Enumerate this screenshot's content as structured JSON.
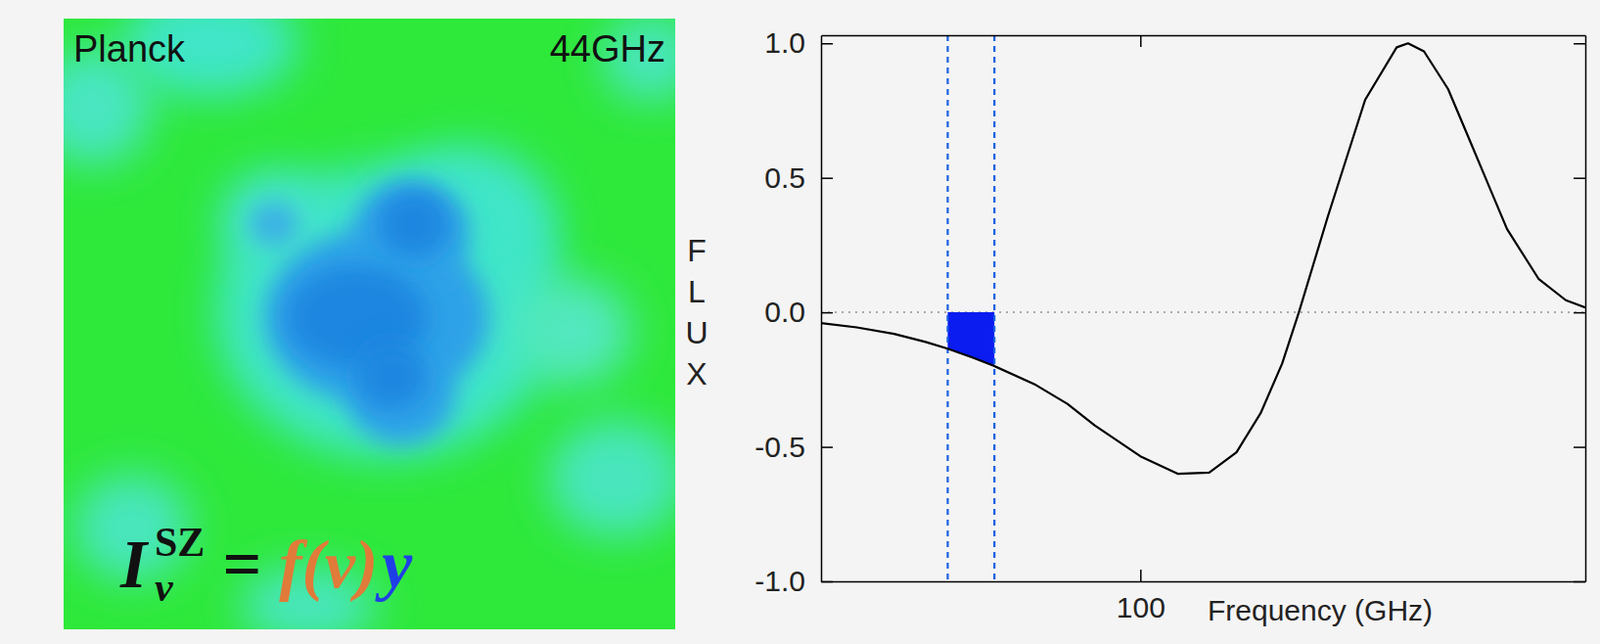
{
  "map_panel": {
    "title": "Planck",
    "frequency_label": "44GHz",
    "formula": {
      "symbol": "I",
      "superscript": "SZ",
      "subscript": "ν",
      "equals": "=",
      "spectrum": "f(ν)",
      "amplitude": "y"
    }
  },
  "chart_data": {
    "type": "line",
    "y_label": "FLUX",
    "x_label": "Frequency (GHz)",
    "log": "x",
    "xlim": [
      21,
      880
    ],
    "ylim": [
      -1.0,
      1.03
    ],
    "xticks": [
      100
    ],
    "yticks": [
      {
        "value": 1.0,
        "label": "1.0"
      },
      {
        "value": 0.5,
        "label": "0.5"
      },
      {
        "value": 0.0,
        "label": "0.0"
      },
      {
        "value": -0.5,
        "label": "-0.5"
      },
      {
        "value": -1.0,
        "label": "-1.0"
      }
    ],
    "grid": false,
    "x": [
      21,
      25,
      30,
      35,
      39,
      44,
      49,
      60,
      70,
      80,
      100,
      120,
      140,
      160,
      180,
      200,
      217,
      250,
      300,
      350,
      370,
      400,
      450,
      500,
      600,
      700,
      800,
      880
    ],
    "series": [
      {
        "color": "#000000",
        "values": [
          -0.04,
          -0.056,
          -0.08,
          -0.11,
          -0.135,
          -0.168,
          -0.2,
          -0.27,
          -0.34,
          -0.42,
          -0.535,
          -0.6,
          -0.596,
          -0.52,
          -0.375,
          -0.19,
          0.0,
          0.356,
          0.79,
          0.985,
          1.0,
          0.97,
          0.83,
          0.64,
          0.31,
          0.125,
          0.045,
          0.018
        ]
      }
    ],
    "band": [
      39,
      49
    ]
  }
}
